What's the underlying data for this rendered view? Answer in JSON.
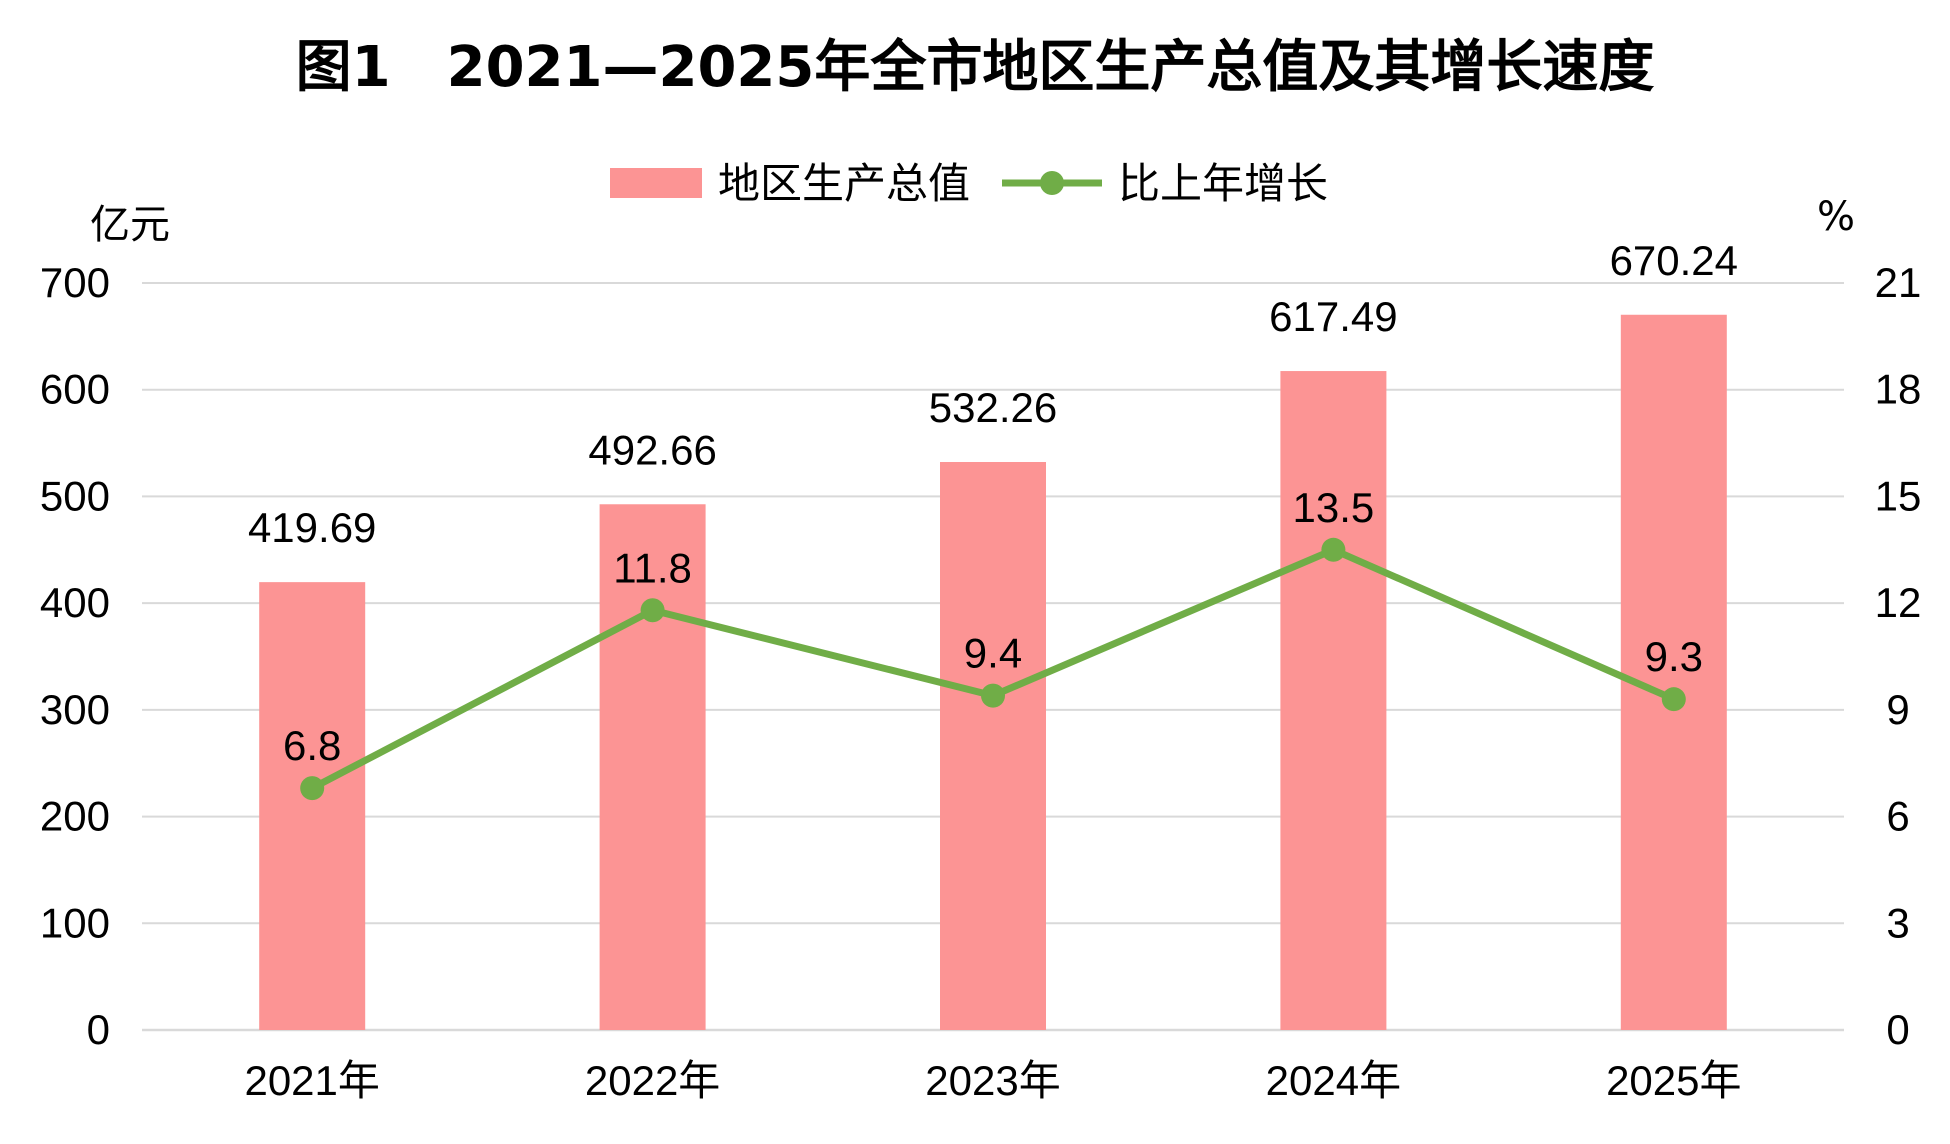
{
  "chart_data": {
    "type": "bar+line",
    "title": "图1　2021—2025年全市地区生产总值及其增长速度",
    "categories": [
      "2021年",
      "2022年",
      "2023年",
      "2024年",
      "2025年"
    ],
    "series": [
      {
        "name": "地区生产总值",
        "type": "bar",
        "axis": "left",
        "color": "#fc9494",
        "values": [
          419.69,
          492.66,
          532.26,
          617.49,
          670.24
        ],
        "labels": [
          "419.69",
          "492.66",
          "532.26",
          "617.49",
          "670.24"
        ]
      },
      {
        "name": "比上年增长",
        "type": "line",
        "axis": "right",
        "color": "#70ad47",
        "values": [
          6.8,
          11.8,
          9.4,
          13.5,
          9.3
        ],
        "labels": [
          "6.8",
          "11.8",
          "9.4",
          "13.5",
          "9.3"
        ]
      }
    ],
    "y_left": {
      "unit": "亿元",
      "ylim": [
        0,
        700
      ],
      "ticks": [
        0,
        100,
        200,
        300,
        400,
        500,
        600,
        700
      ],
      "tick_labels": [
        "0",
        "100",
        "200",
        "300",
        "400",
        "500",
        "600",
        "700"
      ]
    },
    "y_right": {
      "unit": "%",
      "ylim": [
        0,
        21
      ],
      "ticks": [
        0,
        3,
        6,
        9,
        12,
        15,
        18,
        21
      ],
      "tick_labels": [
        "0",
        "3",
        "6",
        "9",
        "12",
        "15",
        "18",
        "21"
      ]
    },
    "grid": true,
    "legend_position": "top-center"
  }
}
